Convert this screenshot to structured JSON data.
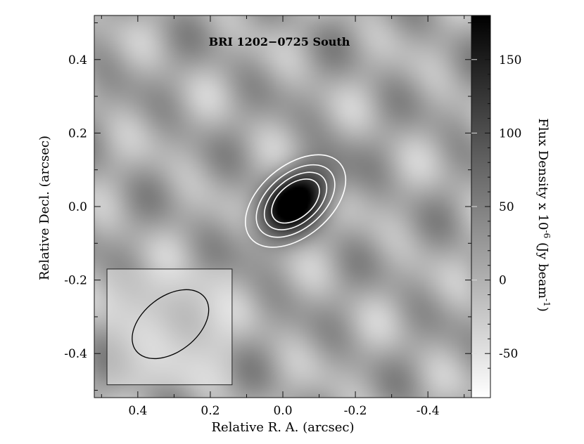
{
  "chart_data": {
    "type": "heatmap",
    "title": "BRI 1202−0725 South",
    "xlabel": "Relative R. A. (arcsec)",
    "ylabel": "Relative Decl. (arcsec)",
    "xlim": [
      0.52,
      -0.52
    ],
    "ylim": [
      -0.52,
      0.52
    ],
    "x_ticks": [
      0.4,
      0.2,
      0.0,
      -0.2,
      -0.4
    ],
    "x_tick_labels": [
      "0.4",
      "0.2",
      "0.0",
      "-0.2",
      "-0.4"
    ],
    "y_ticks": [
      0.4,
      0.2,
      0.0,
      -0.2,
      -0.4
    ],
    "y_tick_labels": [
      "0.4",
      "0.2",
      "0.0",
      "-0.2",
      "-0.4"
    ],
    "colorbar": {
      "label_parts": {
        "pre": "Flux Density x 10",
        "exp1": "-6",
        "mid": " (Jy beam",
        "exp2": "-1",
        "post": ")"
      },
      "range": [
        -80,
        180
      ],
      "ticks": [
        150,
        100,
        50,
        0,
        -50
      ],
      "tick_labels": [
        "150",
        "100",
        "50",
        "0",
        "-50"
      ],
      "colormap": "gray_reversed",
      "low_color": "#ffffff",
      "high_color": "#000000"
    },
    "source": {
      "peak_ra": -0.035,
      "peak_dec": 0.015,
      "peak_flux": 180,
      "major_axis_fwhm": 0.2,
      "minor_axis_fwhm": 0.12,
      "position_angle_deg": 40
    },
    "contours": {
      "color": "#ffffff",
      "levels": [
        30,
        60,
        90,
        120
      ]
    },
    "beam": {
      "center_ra": 0.31,
      "center_dec": -0.32,
      "major_axis": 0.24,
      "minor_axis": 0.15,
      "position_angle_deg": 38,
      "outline_color": "#000000"
    },
    "grid": false
  }
}
